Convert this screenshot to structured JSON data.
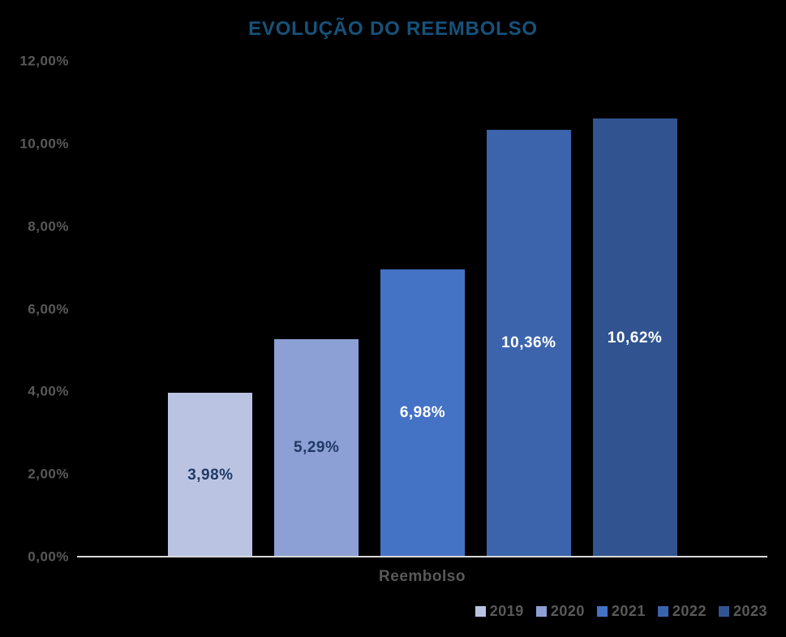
{
  "colors": {
    "background": "#000000",
    "title_text": "#16527C",
    "axis_text": "#595959",
    "axis_line": "#D9D9D9"
  },
  "chart_data": {
    "type": "bar",
    "title": "EVOLUÇÃO DO REEMBOLSO",
    "xlabel": "Reembolso",
    "ylabel": "",
    "ylim": [
      0,
      12
    ],
    "grid": false,
    "legend_position": "bottom-right",
    "categories": [
      "2019",
      "2020",
      "2021",
      "2022",
      "2023"
    ],
    "values": [
      3.98,
      5.29,
      6.98,
      10.36,
      10.62
    ],
    "value_labels": [
      "3,98%",
      "5,29%",
      "6,98%",
      "10,36%",
      "10,62%"
    ],
    "bar_colors": [
      "#BAC4E2",
      "#8CA0D5",
      "#4472C4",
      "#3B64AC",
      "#315490"
    ],
    "value_label_colors": [
      "#1F3864",
      "#1F3864",
      "#FFFFFF",
      "#FFFFFF",
      "#FFFFFF"
    ],
    "ytick_values": [
      0,
      2,
      4,
      6,
      8,
      10,
      12
    ],
    "ytick_labels": [
      "0,00%",
      "2,00%",
      "4,00%",
      "6,00%",
      "8,00%",
      "10,00%",
      "12,00%"
    ],
    "legend": [
      "2019",
      "2020",
      "2021",
      "2022",
      "2023"
    ]
  }
}
